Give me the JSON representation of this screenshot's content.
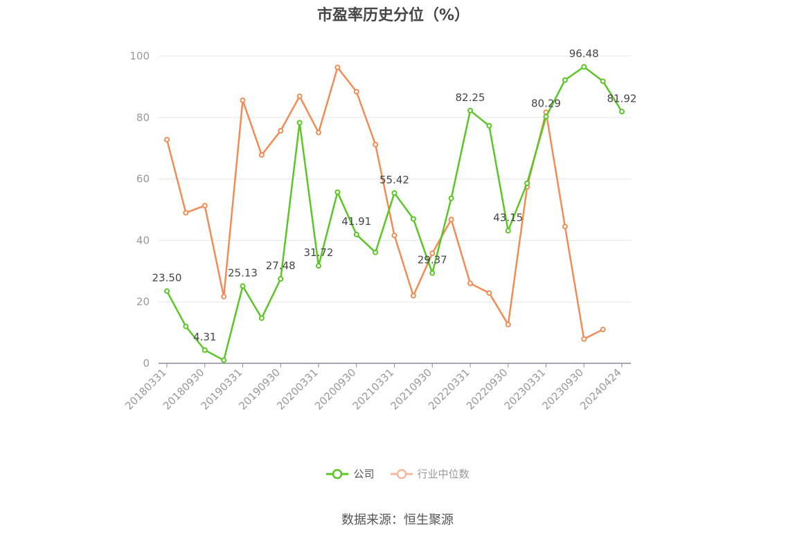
{
  "title": "市盈率历史分位（%）",
  "source": "数据来源：恒生聚源",
  "colors": {
    "company": "#5ac624",
    "industry": "#f28b54",
    "axis": "#8c8c9c",
    "grid": "#e6e6ea",
    "label": "#444444",
    "tick": "#999999"
  },
  "legend": [
    {
      "name": "公司",
      "color": "#5ac624"
    },
    {
      "name": "行业中位数",
      "color": "#f7b79b"
    }
  ],
  "chart_data": {
    "type": "line",
    "title": "市盈率历史分位（%）",
    "xlabel": "",
    "ylabel": "",
    "ylim": [
      0,
      100
    ],
    "yticks": [
      0,
      20,
      40,
      60,
      80,
      100
    ],
    "grid": true,
    "legend_position": "bottom",
    "x": [
      "20180331",
      "20180630",
      "20180930",
      "20181231",
      "20190331",
      "20190630",
      "20190930",
      "20191231",
      "20200331",
      "20200630",
      "20200930",
      "20201231",
      "20210331",
      "20210630",
      "20210930",
      "20211231",
      "20220331",
      "20220630",
      "20220930",
      "20221231",
      "20230331",
      "20230630",
      "20230930",
      "20231231",
      "20240424"
    ],
    "x_tick_labels": [
      "20180331",
      "20180930",
      "20190331",
      "20190930",
      "20200331",
      "20200930",
      "20210331",
      "20210930",
      "20220331",
      "20220930",
      "20230331",
      "20230930",
      "20240424"
    ],
    "series": [
      {
        "name": "公司",
        "values": [
          23.5,
          12.0,
          4.31,
          1.0,
          25.13,
          14.7,
          27.48,
          78.3,
          31.72,
          55.7,
          41.91,
          36.1,
          55.42,
          47.0,
          29.37,
          53.7,
          82.25,
          77.3,
          43.15,
          58.6,
          80.29,
          92.2,
          96.48,
          91.8,
          81.92
        ],
        "labels": [
          "23.50",
          "",
          "4.31",
          "",
          "25.13",
          "",
          "27.48",
          "",
          "31.72",
          "",
          "41.91",
          "",
          "55.42",
          "",
          "29.37",
          "",
          "82.25",
          "",
          "43.15",
          "",
          "80.29",
          "",
          "96.48",
          "",
          "81.92"
        ]
      },
      {
        "name": "行业中位数",
        "values": [
          72.8,
          49.0,
          51.3,
          21.7,
          85.6,
          67.8,
          75.7,
          86.9,
          75.1,
          96.3,
          88.4,
          71.2,
          41.6,
          22.0,
          35.8,
          46.8,
          26.0,
          22.9,
          12.6,
          57.4,
          81.7,
          44.5,
          7.9,
          11.0,
          null
        ]
      }
    ]
  }
}
